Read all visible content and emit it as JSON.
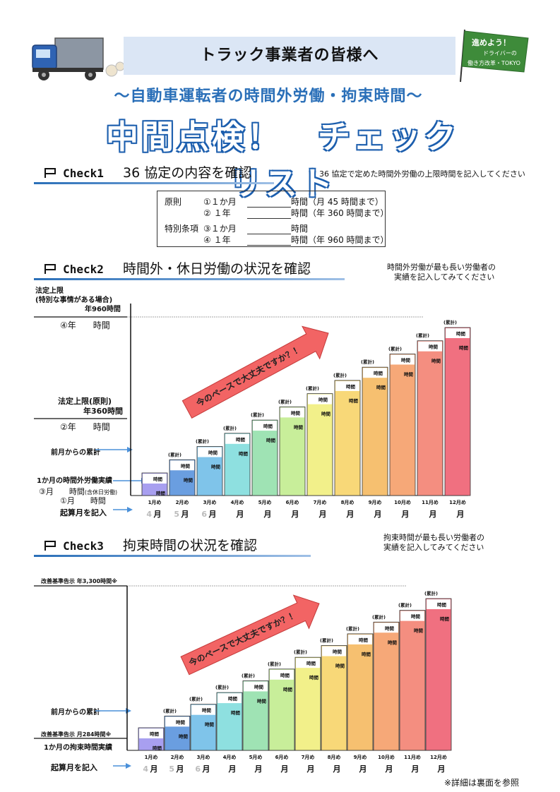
{
  "header": {
    "banner_title": "トラック事業者の皆様へ",
    "subtitle": "～自動車運転者の時間外労働・拘束時間～",
    "main_title": "中間点検！　チェックリスト",
    "flag_text_1": "進めよう！",
    "flag_text_2": "ドライバーの",
    "flag_text_3": "働き方改革・TOKYO",
    "flag_color": "#3e8b3a"
  },
  "check1": {
    "label": "Check1",
    "title": "36 協定の内容を確認",
    "note": "36 協定で定めた時間外労働の上限時間を記入してください",
    "rows": [
      {
        "left": "原則",
        "num": "①１か月",
        "unit": "時間",
        "suffix": "（月 45 時間まで）"
      },
      {
        "left": "",
        "num": "②  １年",
        "unit": "時間",
        "suffix": "（年 360 時間まで）"
      },
      {
        "left": "特別条項",
        "num": "③１か月",
        "unit": "時間",
        "suffix": ""
      },
      {
        "left": "",
        "num": "④  １年",
        "unit": "時間",
        "suffix": "（年 960 時間まで）"
      }
    ]
  },
  "check2": {
    "label": "Check2",
    "title": "時間外・休日労働の状況を確認",
    "note_1": "時間外労働が最も長い労働者の",
    "note_2": "実績を記入してみてください",
    "limit_special_1": "法定上限",
    "limit_special_2": "(特別な事情がある場合)",
    "limit_special_3": "年960時間",
    "row4": "④年　　時間",
    "limit_basic_1": "法定上限(原則)",
    "limit_basic_2": "年360時間",
    "row2": "②年　　時間",
    "cumulative": "前月からの累計",
    "monthly": "1か月の時間外労働実績",
    "row3": "③月　　時間",
    "row3_note": "(含休日労働)",
    "row1": "①月　　時間",
    "start_month": "起算月を記入",
    "arrow_text": "今のペースで大丈夫ですか？！"
  },
  "check3": {
    "label": "Check3",
    "title": "拘束時間の状況を確認",
    "note_1": "拘束時間が最も長い労働者の",
    "note_2": "実績を記入してみてください",
    "limit_year": "改善基準告示 年3,300時間※",
    "limit_month": "改善基準告示 月284時間※",
    "cumulative": "前月からの累計",
    "monthly": "1か月の拘束時間実績",
    "start_month": "起算月を記入",
    "arrow_text": "今のペースで大丈夫ですか？！"
  },
  "chart_labels": {
    "cum": "(累計)",
    "hours": "時間",
    "month": "月",
    "start_months": [
      "4",
      "5",
      "6"
    ]
  },
  "chart_data": [
    {
      "type": "bar",
      "categories": [
        "1月め",
        "2月め",
        "3月め",
        "4月め",
        "5月め",
        "6月め",
        "7月め",
        "8月め",
        "9月め",
        "10月め",
        "11月め",
        "12月め"
      ],
      "values": [
        1,
        2,
        3,
        4,
        5,
        6,
        7,
        8,
        9,
        10,
        11,
        12
      ],
      "title": "",
      "xlabel": "",
      "ylabel": ""
    },
    {
      "type": "bar",
      "categories": [
        "1月め",
        "2月め",
        "3月め",
        "4月め",
        "5月め",
        "6月め",
        "7月め",
        "8月め",
        "9月め",
        "10月め",
        "11月め",
        "12月め"
      ],
      "values": [
        1,
        2,
        3,
        4,
        5,
        6,
        7,
        8,
        9,
        10,
        11,
        12
      ],
      "title": "",
      "xlabel": "",
      "ylabel": ""
    }
  ],
  "footer": "※詳細は裏面を参照",
  "colors": {
    "bar_colors": [
      "#a89ff0",
      "#6a9ee0",
      "#7fc4ea",
      "#8ee0e0",
      "#9fe3b4",
      "#c8ee9a",
      "#f2f08a",
      "#f8d878",
      "#f6c070",
      "#f6a878",
      "#f48e80",
      "#f07080"
    ]
  }
}
